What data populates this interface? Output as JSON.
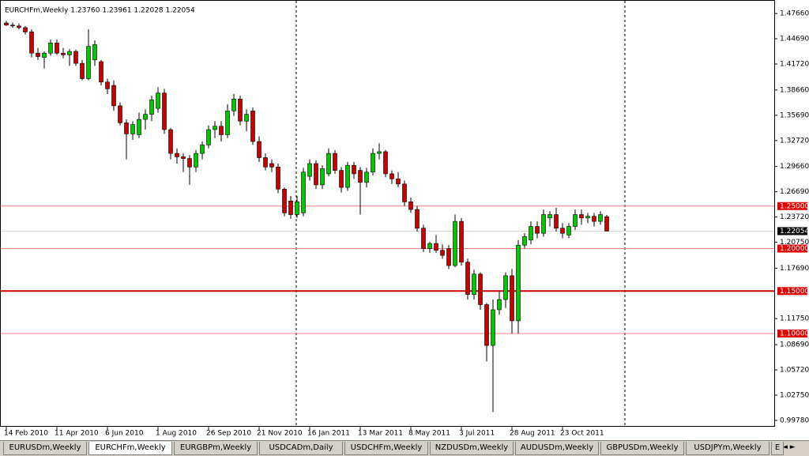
{
  "header": {
    "title": "EURCHFm,Weekly  1.23760 1.23961 1.22028 1.22054"
  },
  "chart_data": {
    "type": "candlestick",
    "categories": [
      "14 Feb 2010",
      null,
      null,
      null,
      null,
      null,
      null,
      null,
      "11 Apr 2010",
      null,
      null,
      null,
      null,
      null,
      null,
      null,
      "6 Jun 2010",
      null,
      null,
      null,
      null,
      null,
      null,
      null,
      "1 Aug 2010",
      null,
      null,
      null,
      null,
      null,
      null,
      null,
      "26 Sep 2010",
      null,
      null,
      null,
      null,
      null,
      null,
      null,
      "21 Nov 2010",
      null,
      null,
      null,
      null,
      null,
      null,
      null,
      "16 Jan 2011",
      null,
      null,
      null,
      null,
      null,
      null,
      null,
      "13 Mar 2011",
      null,
      null,
      null,
      null,
      null,
      null,
      null,
      "8 May 2011",
      null,
      null,
      null,
      null,
      null,
      null,
      null,
      "3 Jul 2011",
      null,
      null,
      null,
      null,
      null,
      null,
      null,
      "28 Aug 2011",
      null,
      null,
      null,
      null,
      null,
      null,
      null,
      "23 Oct 2011",
      null,
      null,
      null,
      null,
      null,
      null,
      null
    ],
    "open": [
      1.4655,
      1.463,
      1.462,
      1.46,
      1.455,
      1.43,
      1.425,
      1.43,
      1.442,
      1.43,
      1.428,
      1.432,
      1.418,
      1.4,
      1.422,
      1.42,
      1.396,
      1.392,
      1.368,
      1.348,
      1.335,
      1.334,
      1.352,
      1.358,
      1.365,
      1.383,
      1.34,
      1.312,
      1.308,
      1.306,
      1.296,
      1.312,
      1.322,
      1.34,
      1.344,
      1.334,
      1.362,
      1.376,
      1.35,
      1.362,
      1.326,
      1.307,
      1.3,
      1.296,
      1.27,
      1.256,
      1.24,
      1.242,
      1.285,
      1.3,
      1.275,
      1.288,
      1.312,
      1.292,
      1.272,
      1.298,
      1.292,
      1.278,
      1.29,
      1.312,
      1.314,
      1.288,
      1.282,
      1.276,
      1.255,
      1.246,
      1.224,
      1.2,
      1.206,
      1.198,
      1.2,
      1.18,
      1.232,
      1.184,
      1.146,
      1.17,
      1.134,
      1.086,
      1.128,
      1.14,
      1.168,
      1.115,
      1.204,
      1.21,
      1.226,
      1.218,
      1.236,
      1.24,
      1.224,
      1.216,
      1.226,
      1.24,
      1.236,
      1.238,
      1.232,
      1.2376
    ],
    "high": [
      1.468,
      1.466,
      1.465,
      1.462,
      1.458,
      1.436,
      1.432,
      1.446,
      1.446,
      1.436,
      1.435,
      1.434,
      1.422,
      1.458,
      1.445,
      1.422,
      1.4,
      1.398,
      1.372,
      1.352,
      1.35,
      1.36,
      1.364,
      1.38,
      1.39,
      1.388,
      1.342,
      1.318,
      1.312,
      1.31,
      1.316,
      1.326,
      1.345,
      1.35,
      1.35,
      1.37,
      1.382,
      1.38,
      1.364,
      1.366,
      1.332,
      1.312,
      1.305,
      1.3,
      1.272,
      1.262,
      1.262,
      1.295,
      1.305,
      1.304,
      1.298,
      1.318,
      1.316,
      1.296,
      1.302,
      1.302,
      1.296,
      1.295,
      1.318,
      1.324,
      1.316,
      1.292,
      1.29,
      1.28,
      1.26,
      1.25,
      1.228,
      1.208,
      1.216,
      1.205,
      1.204,
      1.24,
      1.236,
      1.188,
      1.175,
      1.172,
      1.136,
      1.14,
      1.15,
      1.172,
      1.176,
      1.21,
      1.218,
      1.232,
      1.232,
      1.246,
      1.244,
      1.248,
      1.23,
      1.23,
      1.246,
      1.246,
      1.242,
      1.242,
      1.244,
      1.23961
    ],
    "low": [
      1.462,
      1.46,
      1.458,
      1.452,
      1.425,
      1.422,
      1.412,
      1.427,
      1.428,
      1.424,
      1.415,
      1.415,
      1.398,
      1.398,
      1.415,
      1.392,
      1.382,
      1.362,
      1.345,
      1.305,
      1.328,
      1.33,
      1.34,
      1.35,
      1.36,
      1.335,
      1.305,
      1.3,
      1.29,
      1.275,
      1.29,
      1.305,
      1.318,
      1.33,
      1.326,
      1.33,
      1.356,
      1.345,
      1.338,
      1.322,
      1.302,
      1.292,
      1.29,
      1.265,
      1.238,
      1.235,
      1.236,
      1.238,
      1.28,
      1.27,
      1.27,
      1.285,
      1.288,
      1.266,
      1.268,
      1.282,
      1.24,
      1.272,
      1.286,
      1.305,
      1.284,
      1.276,
      1.272,
      1.25,
      1.242,
      1.22,
      1.196,
      1.195,
      1.195,
      1.188,
      1.176,
      1.178,
      1.18,
      1.14,
      1.14,
      1.128,
      1.067,
      1.0075,
      1.122,
      1.13,
      1.1,
      1.1,
      1.2,
      1.205,
      1.212,
      1.214,
      1.226,
      1.22,
      1.212,
      1.212,
      1.222,
      1.228,
      1.23,
      1.226,
      1.228,
      1.22028
    ],
    "close": [
      1.463,
      1.462,
      1.46,
      1.455,
      1.43,
      1.426,
      1.43,
      1.442,
      1.43,
      1.428,
      1.432,
      1.418,
      1.4,
      1.438,
      1.44,
      1.396,
      1.388,
      1.368,
      1.348,
      1.335,
      1.346,
      1.352,
      1.358,
      1.375,
      1.383,
      1.34,
      1.312,
      1.308,
      1.306,
      1.296,
      1.312,
      1.322,
      1.34,
      1.344,
      1.334,
      1.362,
      1.376,
      1.35,
      1.358,
      1.326,
      1.307,
      1.296,
      1.296,
      1.27,
      1.242,
      1.24,
      1.255,
      1.29,
      1.3,
      1.275,
      1.294,
      1.312,
      1.292,
      1.272,
      1.298,
      1.288,
      1.278,
      1.29,
      1.312,
      1.314,
      1.288,
      1.282,
      1.276,
      1.255,
      1.246,
      1.224,
      1.2,
      1.206,
      1.198,
      1.192,
      1.18,
      1.232,
      1.184,
      1.146,
      1.17,
      1.134,
      1.086,
      1.128,
      1.14,
      1.168,
      1.115,
      1.204,
      1.214,
      1.226,
      1.218,
      1.24,
      1.24,
      1.224,
      1.218,
      1.226,
      1.24,
      1.236,
      1.238,
      1.232,
      1.24,
      1.22054
    ],
    "up_color": "#00c800",
    "down_color": "#c80000",
    "ylim": [
      0.9903,
      1.4916
    ],
    "yticks": [
      {
        "value": 1.4766,
        "label": "1.47660"
      },
      {
        "value": 1.4469,
        "label": "1.44690"
      },
      {
        "value": 1.4172,
        "label": "1.41720"
      },
      {
        "value": 1.3866,
        "label": "1.38660"
      },
      {
        "value": 1.3569,
        "label": "1.35690"
      },
      {
        "value": 1.3272,
        "label": "1.32720"
      },
      {
        "value": 1.2966,
        "label": "1.29660"
      },
      {
        "value": 1.2669,
        "label": "1.26690"
      },
      {
        "value": 1.2372,
        "label": "1.23720"
      },
      {
        "value": 1.2075,
        "label": "1.20750"
      },
      {
        "value": 1.1769,
        "label": "1.17690"
      },
      {
        "value": 1.1175,
        "label": "1.11750"
      },
      {
        "value": 1.0869,
        "label": "1.08690"
      },
      {
        "value": 1.0572,
        "label": "1.05720"
      },
      {
        "value": 1.0275,
        "label": "1.02750"
      },
      {
        "value": 0.9978,
        "label": "0.99780"
      }
    ],
    "levels": [
      {
        "value": 1.25,
        "label": "1.25000",
        "color": "#ff8080",
        "width": 1
      },
      {
        "value": 1.2,
        "label": "1.20000",
        "color": "#ff8080",
        "width": 1
      },
      {
        "value": 1.15,
        "label": "1.15000",
        "color": "#cc0000",
        "width": 2
      },
      {
        "value": 1.1,
        "label": "1.10000",
        "color": "#ff8080",
        "width": 1
      }
    ],
    "current": {
      "value": 1.22054,
      "label": "1.22054"
    }
  },
  "tabs": {
    "items": [
      "EURUSDm,Weekly",
      "EURCHFm,Weekly",
      "EURGBPm,Weekly",
      "USDCADm,Daily",
      "USDCHFm,Weekly",
      "NZDUSDm,Weekly",
      "AUDUSDm,Weekly",
      "GBPUSDm,Weekly",
      "USDJPYm,Weekly",
      "E"
    ],
    "active": 1
  }
}
